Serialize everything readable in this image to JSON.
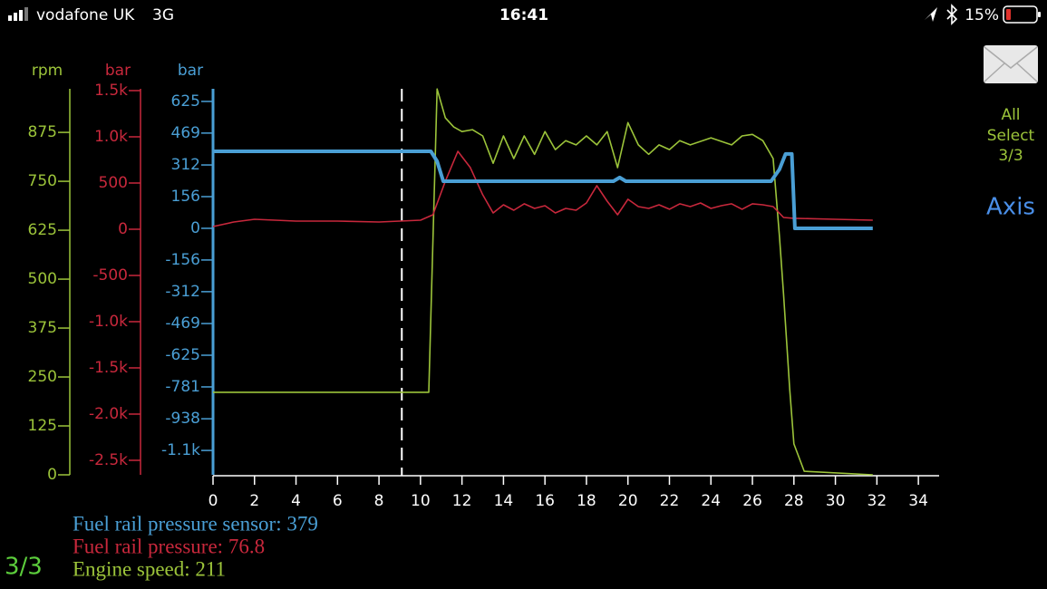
{
  "status_bar": {
    "carrier": "vodafone UK",
    "network": "3G",
    "time": "16:41",
    "battery": "15%"
  },
  "sidebar": {
    "selection": [
      "All",
      "Select",
      "3/3"
    ],
    "axis_button": "Axis"
  },
  "page_indicator": "3/3",
  "chart_data": {
    "type": "line",
    "xlim": [
      0,
      35
    ],
    "xticks": [
      0,
      2,
      4,
      6,
      8,
      10,
      12,
      14,
      16,
      18,
      20,
      22,
      24,
      26,
      28,
      30,
      32,
      34
    ],
    "cursor_x": 9.1,
    "axes": [
      {
        "label": "rpm",
        "color": "#9cc43a",
        "ylim": [
          0,
          991
        ],
        "yticks": [
          0,
          125,
          250,
          375,
          500,
          625,
          750,
          875
        ]
      },
      {
        "label": "bar",
        "color": "#c8283c",
        "ylim": [
          -2657,
          1539
        ],
        "yticks": [
          {
            "value": -2500,
            "label": "-2.5k"
          },
          {
            "value": -2000,
            "label": "-2.0k"
          },
          {
            "value": -1500,
            "label": "-1.5k"
          },
          {
            "value": -1000,
            "label": "-1.0k"
          },
          -500,
          0,
          500,
          {
            "value": 1000,
            "label": "1.0k"
          },
          {
            "value": 1500,
            "label": "1.5k"
          }
        ]
      },
      {
        "label": "bar",
        "color": "#4a9fd5",
        "ylim": [
          -1214,
          696
        ],
        "yticks": [
          {
            "value": -1094,
            "label": "-1.1k"
          },
          -938,
          -781,
          -625,
          -469,
          -312,
          -156,
          0,
          156,
          312,
          469,
          625
        ]
      }
    ],
    "series": [
      {
        "label": "Engine speed: 211",
        "color": "#9cc43a",
        "axis": 0,
        "x": [
          0,
          10.4,
          10.8,
          11.2,
          11.6,
          12,
          12.5,
          13,
          13.5,
          14,
          14.5,
          15,
          15.5,
          16,
          16.5,
          17,
          17.5,
          18,
          18.5,
          19,
          19.5,
          20,
          20.5,
          21,
          21.5,
          22,
          22.5,
          23,
          24,
          25,
          25.5,
          26,
          26.5,
          27,
          27.3,
          27.5,
          27.8,
          28,
          28.5,
          31.8
        ],
        "values": [
          211,
          211,
          986,
          912,
          889,
          877,
          882,
          866,
          796,
          866,
          808,
          866,
          819,
          877,
          831,
          854,
          843,
          866,
          843,
          877,
          785,
          900,
          843,
          819,
          843,
          831,
          854,
          843,
          861,
          843,
          866,
          870,
          854,
          808,
          611,
          461,
          218,
          79,
          9,
          0
        ]
      },
      {
        "label": "Fuel rail pressure: 76.8",
        "color": "#c8283c",
        "axis": 1,
        "x": [
          0,
          1,
          2,
          4,
          6,
          8,
          10,
          10.6,
          11.2,
          11.8,
          12.4,
          13,
          13.5,
          14,
          14.5,
          15,
          15.5,
          16,
          16.5,
          17,
          17.5,
          18,
          18.5,
          19,
          19.5,
          20,
          20.5,
          21,
          21.5,
          22,
          22.5,
          23,
          23.5,
          24,
          24.5,
          25,
          25.5,
          26,
          26.5,
          27,
          27.5,
          28,
          30,
          31.8
        ],
        "values": [
          29,
          78,
          108,
          88,
          88,
          78,
          98,
          157,
          520,
          843,
          667,
          373,
          176,
          265,
          206,
          275,
          225,
          255,
          176,
          225,
          206,
          284,
          471,
          304,
          157,
          324,
          245,
          225,
          265,
          216,
          275,
          245,
          284,
          225,
          255,
          275,
          216,
          275,
          265,
          245,
          127,
          118,
          108,
          98
        ]
      },
      {
        "label": "Fuel rail pressure sensor: 379",
        "color": "#4a9fd5",
        "axis": 2,
        "x": [
          0,
          10.5,
          10.8,
          11.1,
          19.3,
          19.6,
          19.9,
          26.9,
          27.3,
          27.6,
          27.9,
          28.05,
          31.8
        ],
        "values": [
          379,
          379,
          330,
          232,
          232,
          250,
          232,
          232,
          290,
          366,
          366,
          0,
          0
        ]
      }
    ]
  }
}
